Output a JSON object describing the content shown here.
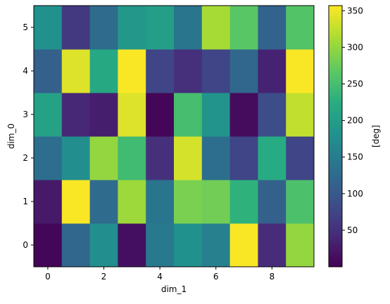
{
  "chart_data": {
    "type": "heatmap",
    "title": "",
    "xlabel": "dim_1",
    "ylabel": "dim_0",
    "colorbar_label": "[deg]",
    "colormap": "viridis",
    "vmin": 0,
    "vmax": 357,
    "x": [
      0,
      1,
      2,
      3,
      4,
      5,
      6,
      7,
      8,
      9
    ],
    "y": [
      0,
      1,
      2,
      3,
      4,
      5
    ],
    "x_tick_labels": [
      "0",
      "2",
      "4",
      "6",
      "8"
    ],
    "y_tick_labels": [
      "0",
      "1",
      "2",
      "3",
      "4",
      "5"
    ],
    "colorbar_tick_labels": [
      "50",
      "100",
      "150",
      "200",
      "250",
      "300",
      "350"
    ],
    "origin": "lower",
    "values": [
      [
        5,
        120,
        175,
        15,
        145,
        180,
        155,
        355,
        45,
        300
      ],
      [
        25,
        355,
        125,
        305,
        140,
        285,
        280,
        230,
        110,
        255
      ],
      [
        130,
        175,
        300,
        245,
        50,
        335,
        130,
        75,
        220,
        75
      ],
      [
        205,
        40,
        30,
        340,
        5,
        250,
        185,
        10,
        85,
        325
      ],
      [
        110,
        340,
        215,
        355,
        75,
        50,
        75,
        120,
        35,
        355
      ],
      [
        180,
        60,
        125,
        190,
        200,
        140,
        310,
        265,
        115,
        260
      ]
    ]
  }
}
